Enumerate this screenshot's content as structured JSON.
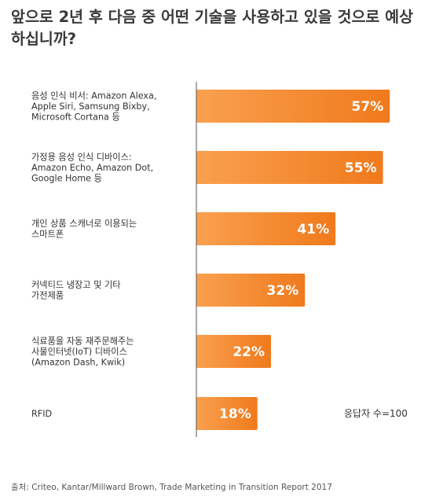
{
  "colors": {
    "bar_light": "#f9a04f",
    "bar_dark": "#f07a1c",
    "axis": "#555555"
  },
  "chart_data": {
    "type": "bar",
    "orientation": "horizontal",
    "title": "앞으로 2년 후 다음 중 어떤 기술을 사용하고 있을 것으로 예상하십니까?",
    "categories": [
      [
        "음성 인식 비서: Amazon Alexa,",
        "Apple Siri, Samsung Bixby,",
        "Microsoft Cortana 등"
      ],
      [
        "가정용 음성 인식 디바이스:",
        "Amazon Echo, Amazon Dot,",
        "Google Home 등"
      ],
      [
        "개인 상품 스캐너로 이용되는",
        "스마트폰"
      ],
      [
        "커넥티드 냉장고 및 기타",
        "가전제품"
      ],
      [
        "식료품을 자동 재주문해주는",
        "사물인터넷(IoT) 디바이스",
        "(Amazon Dash, Kwik)"
      ],
      [
        "RFID"
      ]
    ],
    "values": [
      57,
      55,
      41,
      32,
      22,
      18
    ],
    "value_labels": [
      "57%",
      "55%",
      "41%",
      "32%",
      "22%",
      "18%"
    ],
    "xlim": [
      0,
      100
    ],
    "grid": false,
    "note": "응답자 수=100",
    "source": "출처: Criteo, Kantar/Millward Brown, Trade Marketing in Transition Report 2017"
  }
}
